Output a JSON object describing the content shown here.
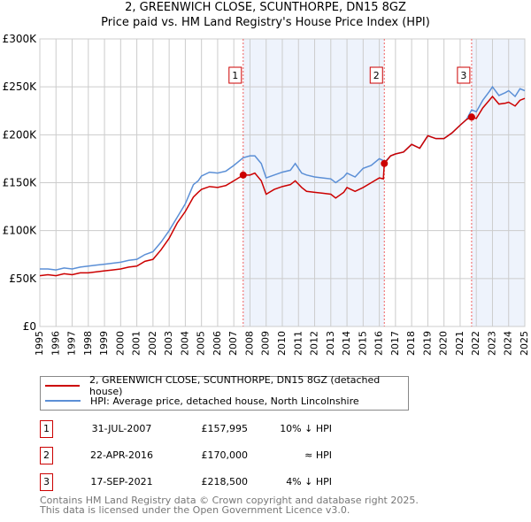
{
  "chart_data": {
    "type": "line",
    "title": "2, GREENWICH CLOSE, SCUNTHORPE, DN15 8GZ",
    "subtitle": "Price paid vs. HM Land Registry's House Price Index (HPI)",
    "xlim": [
      1995,
      2025
    ],
    "ylim": [
      0,
      300000
    ],
    "x_ticks": [
      "1995",
      "1996",
      "1997",
      "1998",
      "1999",
      "2000",
      "2001",
      "2002",
      "2003",
      "2004",
      "2005",
      "2006",
      "2007",
      "2008",
      "2009",
      "2010",
      "2011",
      "2012",
      "2013",
      "2014",
      "2015",
      "2016",
      "2017",
      "2018",
      "2019",
      "2020",
      "2021",
      "2022",
      "2023",
      "2024",
      "2025"
    ],
    "y_ticks": [
      {
        "v": 0,
        "label": "£0"
      },
      {
        "v": 50000,
        "label": "£50K"
      },
      {
        "v": 100000,
        "label": "£100K"
      },
      {
        "v": 150000,
        "label": "£150K"
      },
      {
        "v": 200000,
        "label": "£200K"
      },
      {
        "v": 250000,
        "label": "£250K"
      },
      {
        "v": 300000,
        "label": "£300K"
      }
    ],
    "grid": true,
    "shaded_ranges": [
      [
        2007.58,
        2016.31
      ],
      [
        2021.71,
        2025
      ]
    ],
    "series": [
      {
        "name": "2, GREENWICH CLOSE, SCUNTHORPE, DN15 8GZ (detached house)",
        "color": "#cc0000",
        "x": [
          1995,
          1995.5,
          1996,
          1996.5,
          1997,
          1997.5,
          1998,
          1998.5,
          1999,
          1999.5,
          2000,
          2000.5,
          2001,
          2001.5,
          2002,
          2002.5,
          2003,
          2003.5,
          2004,
          2004.5,
          2004.8,
          2005,
          2005.5,
          2006,
          2006.5,
          2007,
          2007.58,
          2008,
          2008.3,
          2008.7,
          2009,
          2009.5,
          2010,
          2010.5,
          2010.8,
          2011.2,
          2011.5,
          2012,
          2012.5,
          2013,
          2013.3,
          2013.8,
          2014,
          2014.5,
          2015,
          2015.5,
          2016,
          2016.25,
          2016.31,
          2016.7,
          2017,
          2017.5,
          2018,
          2018.5,
          2019,
          2019.5,
          2020,
          2020.5,
          2021,
          2021.4,
          2021.71,
          2022,
          2022.4,
          2022.8,
          2023,
          2023.4,
          2023.8,
          2024,
          2024.4,
          2024.7,
          2025
        ],
        "y": [
          53000,
          54000,
          53000,
          55000,
          54000,
          56000,
          56000,
          57000,
          58000,
          59000,
          60000,
          62000,
          63000,
          68000,
          70000,
          80000,
          92000,
          108000,
          120000,
          135000,
          140000,
          143000,
          146000,
          145000,
          147000,
          152000,
          157995,
          158000,
          160000,
          152000,
          138000,
          143000,
          146000,
          148000,
          152000,
          145000,
          141000,
          140000,
          139000,
          138000,
          134000,
          140000,
          145000,
          141000,
          145000,
          150000,
          155000,
          154000,
          170000,
          178000,
          180000,
          182000,
          190000,
          186000,
          199000,
          196000,
          196000,
          202000,
          210000,
          216000,
          218500,
          217000,
          228000,
          236000,
          240000,
          232000,
          233000,
          234000,
          230000,
          236000,
          238000
        ]
      },
      {
        "name": "HPI: Average price, detached house, North Lincolnshire",
        "color": "#5b8fd6",
        "x": [
          1995,
          1995.5,
          1996,
          1996.5,
          1997,
          1997.5,
          1998,
          1998.5,
          1999,
          1999.5,
          2000,
          2000.5,
          2001,
          2001.5,
          2002,
          2002.5,
          2003,
          2003.5,
          2004,
          2004.5,
          2004.8,
          2005,
          2005.5,
          2006,
          2006.5,
          2007,
          2007.58,
          2008,
          2008.3,
          2008.7,
          2009,
          2009.5,
          2010,
          2010.5,
          2010.8,
          2011.2,
          2011.5,
          2012,
          2012.5,
          2013,
          2013.3,
          2013.8,
          2014,
          2014.5,
          2015,
          2015.5,
          2016,
          2016.25,
          2016.31,
          2016.7,
          2017,
          2017.5,
          2018,
          2018.5,
          2019,
          2019.5,
          2020,
          2020.5,
          2021,
          2021.4,
          2021.71,
          2022,
          2022.4,
          2022.8,
          2023,
          2023.4,
          2023.8,
          2024,
          2024.4,
          2024.7,
          2025
        ],
        "y": [
          60000,
          60000,
          59000,
          61000,
          60000,
          62000,
          63000,
          64000,
          65000,
          66000,
          67000,
          69000,
          70000,
          75000,
          78000,
          88000,
          100000,
          114000,
          128000,
          148000,
          152000,
          157000,
          161000,
          160000,
          162000,
          168000,
          176000,
          178000,
          178000,
          170000,
          155000,
          158000,
          161000,
          163000,
          170000,
          160000,
          158000,
          156000,
          155000,
          154000,
          150000,
          156000,
          160000,
          156000,
          165000,
          168000,
          175000,
          173000,
          171000,
          178000,
          180000,
          182000,
          190000,
          186000,
          199000,
          196000,
          196000,
          202000,
          210000,
          216000,
          226000,
          224000,
          236000,
          245000,
          250000,
          241000,
          244000,
          246000,
          240000,
          248000,
          246000
        ]
      }
    ],
    "sales": [
      {
        "id": "1",
        "x": 2007.58,
        "y": 157995,
        "date": "31-JUL-2007",
        "price": "£157,995",
        "hpi": "10% ↓ HPI"
      },
      {
        "id": "2",
        "x": 2016.31,
        "y": 170000,
        "date": "22-APR-2016",
        "price": "£170,000",
        "hpi": "≈ HPI"
      },
      {
        "id": "3",
        "x": 2021.71,
        "y": 218500,
        "date": "17-SEP-2021",
        "price": "£218,500",
        "hpi": "4% ↓ HPI"
      }
    ]
  },
  "footer": {
    "line1": "Contains HM Land Registry data © Crown copyright and database right 2025.",
    "line2": "This data is licensed under the Open Government Licence v3.0."
  }
}
